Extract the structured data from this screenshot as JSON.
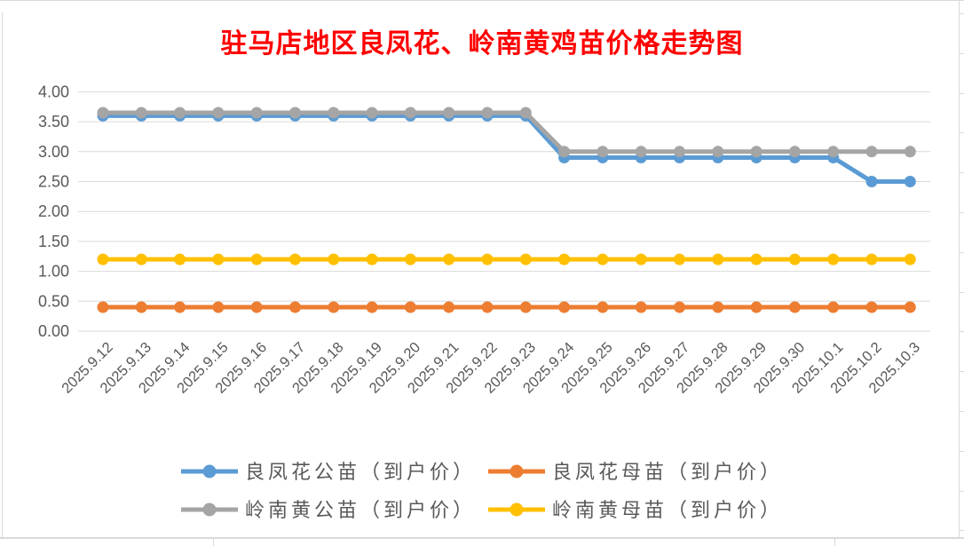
{
  "title": {
    "text": "驻马店地区良凤花、岭南黄鸡苗价格走势图",
    "color": "#FF0000"
  },
  "chart_data": {
    "type": "line",
    "title": "驻马店地区良凤花、岭南黄鸡苗价格走势图",
    "categories": [
      "2025.9.12",
      "2025.9.13",
      "2025.9.14",
      "2025.9.15",
      "2025.9.16",
      "2025.9.17",
      "2025.9.18",
      "2025.9.19",
      "2025.9.20",
      "2025.9.21",
      "2025.9.22",
      "2025.9.23",
      "2025.9.24",
      "2025.9.25",
      "2025.9.26",
      "2025.9.27",
      "2025.9.28",
      "2025.9.29",
      "2025.9.30",
      "2025.10.1",
      "2025.10.2",
      "2025.10.3"
    ],
    "series": [
      {
        "name": "良凤花公苗（到户价）",
        "color": "#5B9BD5",
        "values": [
          3.6,
          3.6,
          3.6,
          3.6,
          3.6,
          3.6,
          3.6,
          3.6,
          3.6,
          3.6,
          3.6,
          3.6,
          2.9,
          2.9,
          2.9,
          2.9,
          2.9,
          2.9,
          2.9,
          2.9,
          2.5,
          2.5
        ]
      },
      {
        "name": "良凤花母苗（到户价）",
        "color": "#ED7D31",
        "values": [
          0.4,
          0.4,
          0.4,
          0.4,
          0.4,
          0.4,
          0.4,
          0.4,
          0.4,
          0.4,
          0.4,
          0.4,
          0.4,
          0.4,
          0.4,
          0.4,
          0.4,
          0.4,
          0.4,
          0.4,
          0.4,
          0.4
        ]
      },
      {
        "name": "岭南黄公苗（到户价）",
        "color": "#A5A5A5",
        "values": [
          3.65,
          3.65,
          3.65,
          3.65,
          3.65,
          3.65,
          3.65,
          3.65,
          3.65,
          3.65,
          3.65,
          3.65,
          3.0,
          3.0,
          3.0,
          3.0,
          3.0,
          3.0,
          3.0,
          3.0,
          3.0,
          3.0
        ]
      },
      {
        "name": "岭南黄母苗（到户价）",
        "color": "#FFC000",
        "values": [
          1.2,
          1.2,
          1.2,
          1.2,
          1.2,
          1.2,
          1.2,
          1.2,
          1.2,
          1.2,
          1.2,
          1.2,
          1.2,
          1.2,
          1.2,
          1.2,
          1.2,
          1.2,
          1.2,
          1.2,
          1.2,
          1.2
        ]
      }
    ],
    "ylim": [
      0,
      4
    ],
    "ytick_step": 0.5,
    "ytick_labels": [
      "0.00",
      "0.50",
      "1.00",
      "1.50",
      "2.00",
      "2.50",
      "3.00",
      "3.50",
      "4.00"
    ],
    "grid": true,
    "legend_position": "bottom",
    "legend_rows": [
      [
        0,
        1
      ],
      [
        2,
        3
      ]
    ],
    "axis_label_color": "#595959",
    "gridline_color": "#D9D9D9"
  }
}
